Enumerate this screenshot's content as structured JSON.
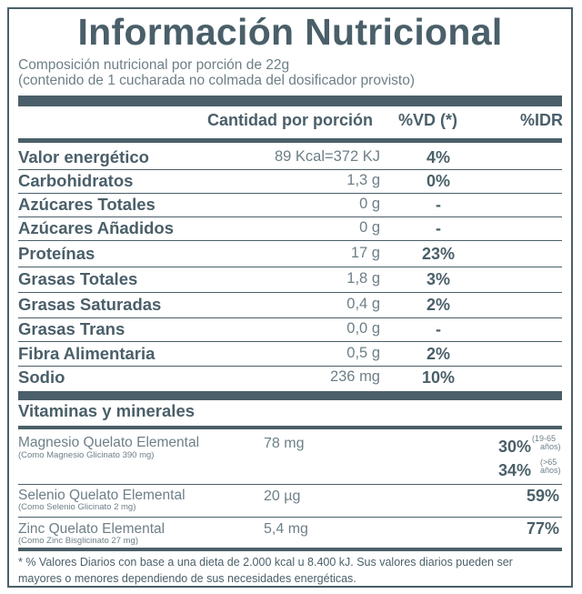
{
  "title": "Información Nutricional",
  "subtitle_1": "Composición nutricional por porción de 22g",
  "subtitle_2": "(contenido de 1 cucharada no colmada del dosificador provisto)",
  "headers": {
    "quantity": "Cantidad por porción",
    "vd": "%VD (*)",
    "idr": "%IDR"
  },
  "rows": [
    {
      "name": "Valor energético",
      "qty": "89 Kcal=372 KJ",
      "vd": "4%"
    },
    {
      "name": "Carbohidratos",
      "qty": "1,3 g",
      "vd": "0%"
    },
    {
      "name": "Azúcares Totales",
      "qty": "0 g",
      "vd": "-"
    },
    {
      "name": "Azúcares Añadidos",
      "qty": "0 g",
      "vd": "-"
    },
    {
      "name": "Proteínas",
      "qty": "17 g",
      "vd": "23%"
    },
    {
      "name": "Grasas Totales",
      "qty": "1,8 g",
      "vd": "3%"
    },
    {
      "name": "Grasas Saturadas",
      "qty": "0,4 g",
      "vd": "2%"
    },
    {
      "name": "Grasas Trans",
      "qty": "0,0 g",
      "vd": "-"
    },
    {
      "name": "Fibra Alimentaria",
      "qty": "0,5 g",
      "vd": "2%"
    },
    {
      "name": "Sodio",
      "qty": "236 mg",
      "vd": "10%"
    }
  ],
  "vitamins_header": "Vitaminas y minerales",
  "vitamins": [
    {
      "name": "Magnesio Quelato Elemental",
      "sub": "(Como Magnesio Glicinato 390 mg)",
      "qty": "78 mg",
      "idr_1": "30%",
      "note_1a": "(19-65",
      "note_1b": "años)",
      "idr_2": "34%",
      "note_2a": "(>65",
      "note_2b": "años)"
    },
    {
      "name": "Selenio Quelato Elemental",
      "sub": "(Como Selenio Glicinato 2 mg)",
      "qty": "20 µg",
      "idr": "59%"
    },
    {
      "name": "Zinc Quelato Elemental",
      "sub": "(Como Zinc Bisglicinato 27 mg)",
      "qty": "5,4 mg",
      "idr": "77%"
    }
  ],
  "footnote_1": "* % Valores Diarios con base a una dieta de 2.000 kcal u 8.400 kJ. Sus valores diarios pueden ser",
  "footnote_2": "mayores o menores dependiendo de sus necesidades energéticas."
}
